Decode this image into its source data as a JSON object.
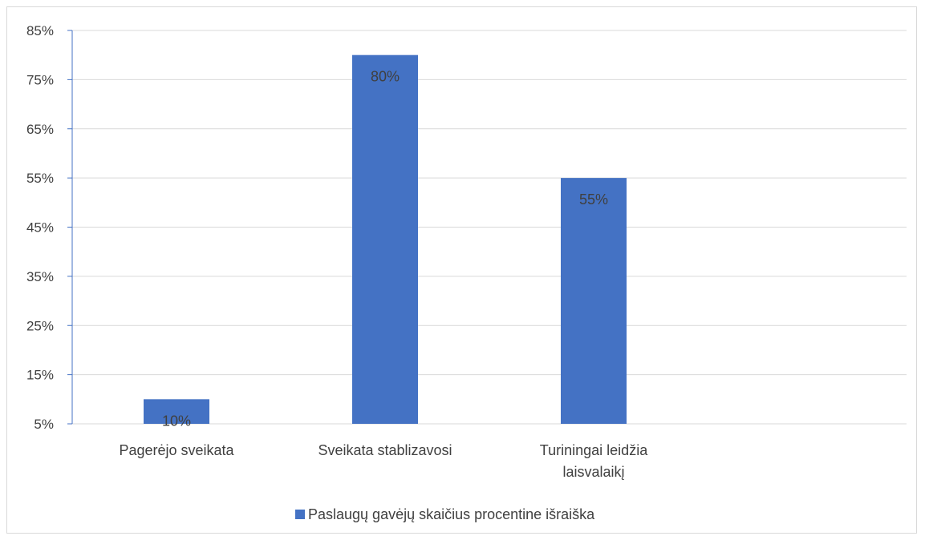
{
  "chart_data": {
    "type": "bar",
    "categories": [
      [
        "Pagerėjo sveikata"
      ],
      [
        "Sveikata stablizavosi"
      ],
      [
        "Turiningai leidžia",
        "laisvalaikį"
      ]
    ],
    "series": [
      {
        "name": "Paslaugų gavėjų skaičius procentine išraiška",
        "values": [
          10,
          80,
          55
        ],
        "data_labels": [
          "10%",
          "80%",
          "55%"
        ],
        "color": "#4472C4"
      }
    ],
    "ylim": [
      5,
      85
    ],
    "yticks": [
      5,
      15,
      25,
      35,
      45,
      55,
      65,
      75,
      85
    ],
    "ytick_labels": [
      "5%",
      "15%",
      "25%",
      "35%",
      "45%",
      "55%",
      "65%",
      "75%",
      "85%"
    ],
    "grid": true,
    "legend_position": "bottom",
    "colors": {
      "axis": "#4472C4",
      "grid": "#d9d9d9",
      "text": "#404040"
    }
  }
}
